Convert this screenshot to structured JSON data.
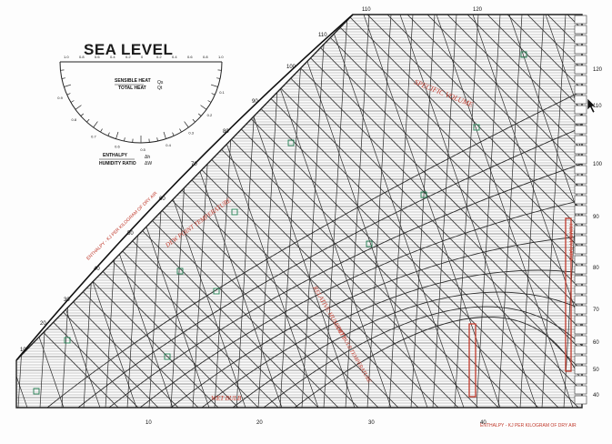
{
  "chart": {
    "title": "SEA LEVEL",
    "protractor": {
      "upper_label_1": "SENSIBLE HEAT",
      "upper_label_2": "TOTAL HEAT",
      "upper_symbol_1": "Qs",
      "upper_symbol_2": "Qt",
      "lower_label_1": "ENTHALPY",
      "lower_label_2": "HUMIDITY RATIO",
      "lower_symbol_1": "Δh",
      "lower_symbol_2": "ΔW",
      "top_scale": [
        "1.0",
        "0.8",
        "0.6",
        "0.4",
        "0.2",
        "0",
        "0.2",
        "0.4",
        "0.6",
        "0.8",
        "1.0"
      ],
      "arc_labels": [
        "0.1",
        "0.2",
        "0.3",
        "0.4",
        "0.5",
        "0.6",
        "0.7",
        "0.8",
        "0.9"
      ]
    },
    "enthalpy_axis_left": "ENTHALPY - KJ PER KILOGRAM OF DRY AIR",
    "enthalpy_axis_bottom": "ENTHALPY - KJ PER KILOGRAM OF DRY AIR",
    "saturation_labels": [
      "110",
      "100",
      "90",
      "80",
      "70",
      "60",
      "50",
      "40",
      "30",
      "20",
      "10"
    ],
    "enthalpy_top_labels": [
      "110",
      "120"
    ],
    "bottom_dry_bulb_labels": [
      "10",
      "20",
      "30",
      "40"
    ],
    "right_axis_labels": [
      "120",
      "110",
      "100",
      "90",
      "80",
      "70",
      "60",
      "50",
      "40"
    ],
    "handwritten": {
      "volume": "SPECIFIC VOLUME",
      "dewpoint": "DEW POINT TEMPERATURE",
      "rh": "RELATIVE HUMIDITY",
      "drybulb": "DRY BULB TEMPERATURE",
      "ratio": "HUMIDITY RATIO",
      "wetbulb": "WET BULB"
    },
    "colors": {
      "grid": "#2a2a2a",
      "accent_red": "#c0392b",
      "accent_green": "#1e7d4f",
      "paper": "#fdfdfd"
    }
  }
}
